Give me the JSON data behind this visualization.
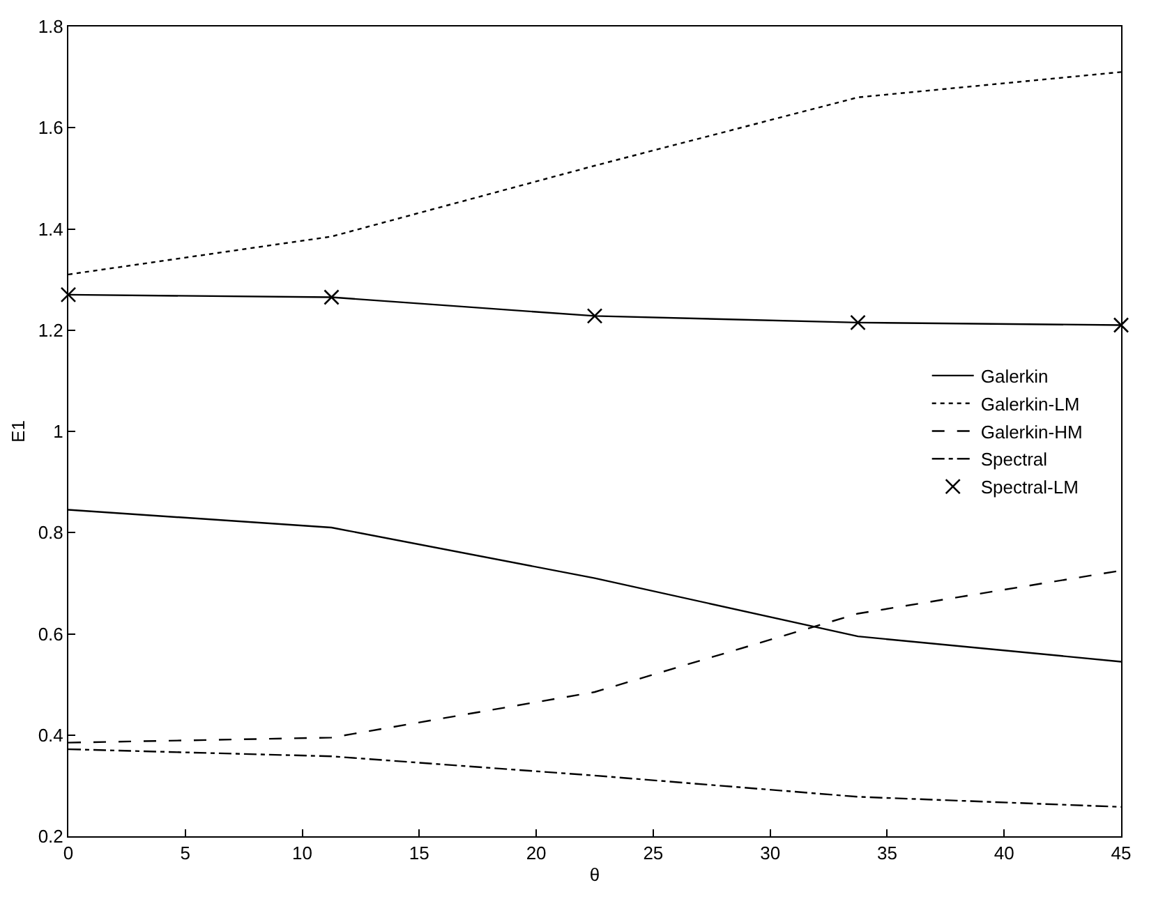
{
  "chart_data": {
    "type": "line",
    "xlabel": "θ",
    "ylabel": "E1",
    "x": [
      0,
      11.25,
      22.5,
      33.75,
      45
    ],
    "xlim": [
      0,
      45
    ],
    "xticks": [
      0,
      5,
      10,
      15,
      20,
      25,
      30,
      35,
      40,
      45
    ],
    "ylim": [
      0.2,
      1.8
    ],
    "yticks": [
      0.2,
      0.4,
      0.6,
      0.8,
      1,
      1.2,
      1.4,
      1.6,
      1.8
    ],
    "legend": "right",
    "series": [
      {
        "name": "Galerkin",
        "color": "#000000",
        "line_style": "solid",
        "marker": "none",
        "values": [
          0.845,
          0.81,
          0.71,
          0.595,
          0.545
        ]
      },
      {
        "name": "Galerkin-LM",
        "color": "#000000",
        "line_style": "dotted",
        "marker": "none",
        "values": [
          1.31,
          1.385,
          1.525,
          1.66,
          1.71
        ]
      },
      {
        "name": "Galerkin-HM",
        "color": "#000000",
        "line_style": "dashed",
        "marker": "none",
        "values": [
          0.385,
          0.395,
          0.485,
          0.64,
          0.725
        ]
      },
      {
        "name": "Spectral",
        "color": "#000000",
        "line_style": "dashdot",
        "marker": "none",
        "values": [
          0.372,
          0.358,
          0.32,
          0.278,
          0.258
        ]
      },
      {
        "name": "Spectral-LM",
        "type": "scatter",
        "color": "#000000",
        "marker": "cross",
        "values": [
          1.27,
          1.265,
          1.228,
          1.215,
          1.21
        ]
      },
      {
        "color": "#000000",
        "line_style": "solid",
        "marker": "none",
        "values": [
          1.27,
          1.265,
          1.228,
          1.215,
          1.21
        ]
      }
    ]
  }
}
